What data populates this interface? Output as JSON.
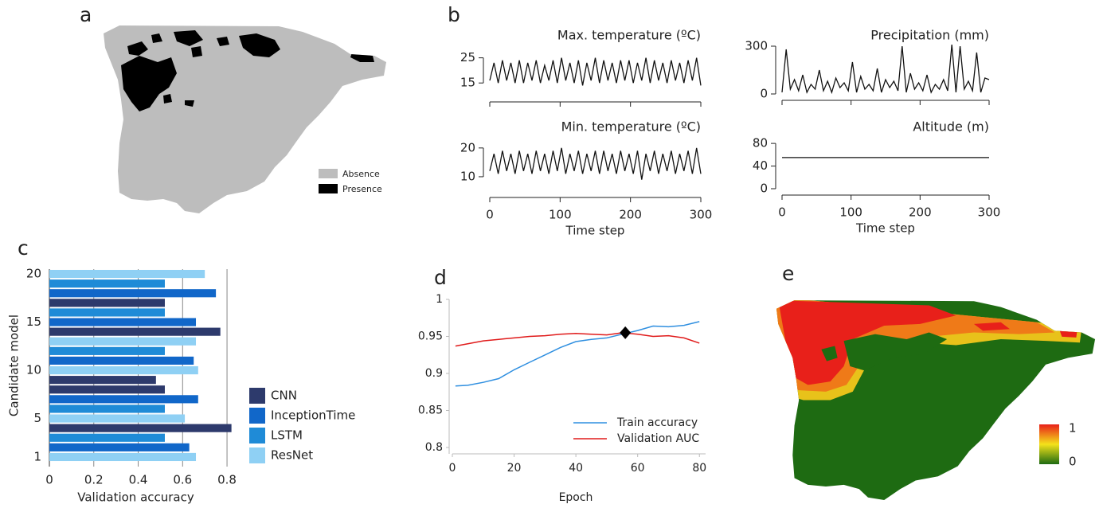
{
  "panel_labels": [
    "a",
    "b",
    "c",
    "d",
    "e"
  ],
  "map_a": {
    "legend": [
      "Absence",
      "Presence"
    ]
  },
  "map_e": {
    "colorbar": {
      "max": 1,
      "min": 0
    }
  },
  "chart_data": [
    {
      "type": "line",
      "title": "Max. temperature (ºC)",
      "x": [
        0,
        6,
        12,
        18,
        24,
        30,
        36,
        42,
        48,
        54,
        60,
        66,
        72,
        78,
        84,
        90,
        96,
        102,
        108,
        114,
        120,
        126,
        132,
        138,
        144,
        150,
        156,
        162,
        168,
        174,
        180,
        186,
        192,
        198,
        204,
        210,
        216,
        222,
        228,
        234,
        240,
        246,
        252,
        258,
        264,
        270,
        276,
        282,
        288,
        294,
        300
      ],
      "values": [
        16,
        23,
        15,
        24,
        16,
        23,
        15,
        24,
        15,
        23,
        16,
        24,
        15,
        22,
        16,
        24,
        15,
        25,
        16,
        23,
        15,
        24,
        14,
        23,
        16,
        25,
        15,
        24,
        16,
        23,
        15,
        24,
        16,
        24,
        15,
        23,
        16,
        25,
        15,
        24,
        16,
        23,
        15,
        24,
        16,
        23,
        15,
        24,
        16,
        25,
        14
      ],
      "color": "#111111",
      "xlim": [
        0,
        300
      ],
      "xticks": [
        0,
        100,
        200,
        300
      ],
      "ylim": [
        10,
        29
      ],
      "yticks": [
        15,
        25
      ]
    },
    {
      "type": "line",
      "title": "Precipitation (mm)",
      "x": [
        0,
        6,
        12,
        18,
        24,
        30,
        36,
        42,
        48,
        54,
        60,
        66,
        72,
        78,
        84,
        90,
        96,
        102,
        108,
        114,
        120,
        126,
        132,
        138,
        144,
        150,
        156,
        162,
        168,
        174,
        180,
        186,
        192,
        198,
        204,
        210,
        216,
        222,
        228,
        234,
        240,
        246,
        252,
        258,
        264,
        270,
        276,
        282,
        288,
        294,
        300
      ],
      "values": [
        10,
        280,
        30,
        90,
        20,
        120,
        10,
        60,
        30,
        150,
        20,
        80,
        10,
        100,
        40,
        70,
        20,
        200,
        10,
        110,
        30,
        60,
        20,
        160,
        10,
        90,
        40,
        80,
        20,
        300,
        10,
        130,
        30,
        70,
        20,
        120,
        10,
        60,
        30,
        90,
        20,
        310,
        10,
        300,
        30,
        80,
        20,
        260,
        10,
        100,
        90
      ],
      "color": "#111111",
      "xlim": [
        0,
        300
      ],
      "xticks": [
        0,
        100,
        200,
        300
      ],
      "ylim": [
        0,
        320
      ],
      "yticks": [
        0,
        300
      ]
    },
    {
      "type": "line",
      "title": "Min. temperature (ºC)",
      "x_label": "Time step",
      "x": [
        0,
        6,
        12,
        18,
        24,
        30,
        36,
        42,
        48,
        54,
        60,
        66,
        72,
        78,
        84,
        90,
        96,
        102,
        108,
        114,
        120,
        126,
        132,
        138,
        144,
        150,
        156,
        162,
        168,
        174,
        180,
        186,
        192,
        198,
        204,
        210,
        216,
        222,
        228,
        234,
        240,
        246,
        252,
        258,
        264,
        270,
        276,
        282,
        288,
        294,
        300
      ],
      "values": [
        12,
        18,
        11,
        19,
        12,
        18,
        11,
        19,
        12,
        18,
        11,
        19,
        12,
        18,
        11,
        19,
        12,
        20,
        11,
        18,
        12,
        19,
        11,
        18,
        12,
        19,
        11,
        19,
        12,
        18,
        11,
        19,
        12,
        18,
        11,
        19,
        9,
        18,
        12,
        19,
        11,
        18,
        12,
        19,
        11,
        18,
        12,
        19,
        11,
        20,
        11
      ],
      "color": "#111111",
      "xlim": [
        0,
        300
      ],
      "xticks": [
        0,
        100,
        200,
        300
      ],
      "ylim": [
        5,
        23
      ],
      "yticks": [
        10,
        20
      ]
    },
    {
      "type": "line",
      "title": "Altitude (m)",
      "x_label": "Time step",
      "x": [
        0,
        300
      ],
      "values": [
        55,
        55
      ],
      "color": "#111111",
      "xlim": [
        0,
        300
      ],
      "xticks": [
        0,
        100,
        200,
        300
      ],
      "ylim": [
        0,
        90
      ],
      "yticks": [
        0,
        40,
        80
      ]
    },
    {
      "type": "bar",
      "orientation": "horizontal",
      "x_label": "Validation accuracy",
      "y_label": "Candidate model",
      "categories": [
        "1",
        null,
        null,
        null,
        "5",
        null,
        null,
        null,
        null,
        "10",
        null,
        null,
        null,
        null,
        "15",
        null,
        null,
        null,
        null,
        "20"
      ],
      "series": [
        {
          "name": "CNN",
          "color": "#2d3a6c",
          "values": [
            null,
            null,
            null,
            0.82,
            null,
            null,
            null,
            0.52,
            0.48,
            null,
            null,
            null,
            null,
            0.77,
            null,
            null,
            0.52,
            null,
            null,
            null
          ]
        },
        {
          "name": "InceptionTime",
          "color": "#1167c9",
          "values": [
            null,
            0.63,
            null,
            null,
            null,
            null,
            0.67,
            null,
            null,
            null,
            0.65,
            null,
            null,
            null,
            0.66,
            null,
            null,
            0.75,
            null,
            null
          ]
        },
        {
          "name": "LSTM",
          "color": "#1f8bd7",
          "values": [
            null,
            null,
            0.52,
            null,
            null,
            0.52,
            null,
            null,
            null,
            null,
            null,
            0.52,
            null,
            null,
            null,
            0.52,
            null,
            null,
            0.52,
            null
          ]
        },
        {
          "name": "ResNet",
          "color": "#8fd0f4",
          "values": [
            0.66,
            null,
            null,
            null,
            0.61,
            null,
            null,
            null,
            null,
            0.67,
            null,
            null,
            0.66,
            null,
            null,
            null,
            null,
            null,
            null,
            0.7
          ]
        }
      ],
      "xlim": [
        0,
        0.85
      ],
      "xticks": [
        0,
        0.2,
        0.4,
        0.6,
        0.8
      ],
      "grid": true,
      "legend": "right"
    },
    {
      "type": "line",
      "x_label": "Epoch",
      "x": [
        1,
        5,
        10,
        15,
        20,
        25,
        30,
        35,
        40,
        45,
        50,
        55,
        60,
        65,
        70,
        75,
        80
      ],
      "series": [
        {
          "name": "Train accuracy",
          "color": "#2f8fe0",
          "values": [
            0.883,
            0.884,
            0.888,
            0.893,
            0.905,
            0.915,
            0.925,
            0.935,
            0.943,
            0.946,
            0.948,
            0.953,
            0.958,
            0.964,
            0.963,
            0.965,
            0.97
          ]
        },
        {
          "name": "Validation AUC",
          "color": "#e01b1b",
          "values": [
            0.937,
            0.94,
            0.944,
            0.946,
            0.948,
            0.95,
            0.951,
            0.953,
            0.954,
            0.953,
            0.952,
            0.955,
            0.953,
            0.95,
            0.951,
            0.948,
            0.941
          ]
        }
      ],
      "marker": {
        "x": 56,
        "y": 0.955
      },
      "xlim": [
        0,
        82
      ],
      "xticks": [
        0,
        20,
        40,
        60,
        80
      ],
      "ylim": [
        0.8,
        1
      ],
      "yticks": [
        0.8,
        0.85,
        0.9,
        0.95,
        1
      ],
      "legend": "lower right"
    }
  ]
}
